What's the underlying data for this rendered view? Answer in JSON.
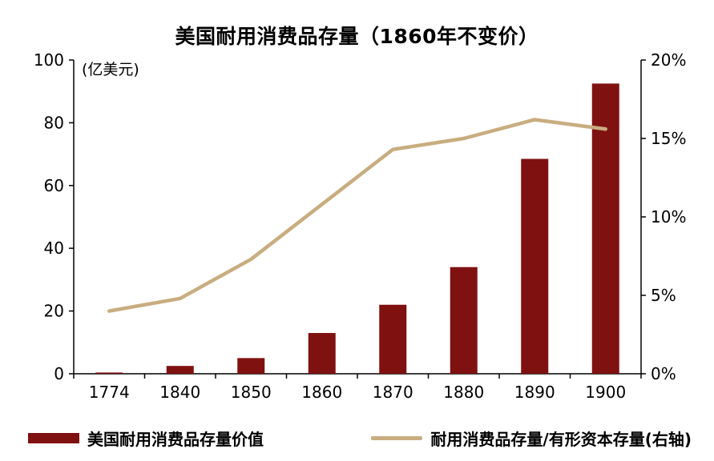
{
  "title": "美国耐用消费品存量（1860年不变价）",
  "chart_data": {
    "type": "combo",
    "categories": [
      "1774",
      "1840",
      "1850",
      "1860",
      "1870",
      "1880",
      "1890",
      "1900"
    ],
    "series": [
      {
        "name": "美国耐用消费品存量价值",
        "type": "bar",
        "axis": "left",
        "color": "#801111",
        "values": [
          0.4,
          2.5,
          5,
          13,
          22,
          34,
          68.5,
          92.5
        ]
      },
      {
        "name": "耐用消费品存量/有形资本存量(右轴)",
        "type": "line",
        "axis": "right",
        "color": "#C8AD80",
        "values_pct": [
          4.0,
          4.8,
          7.3,
          10.8,
          14.3,
          15.0,
          16.2,
          15.6
        ]
      }
    ],
    "left_axis": {
      "label": "(亿美元)",
      "min": 0,
      "max": 100,
      "ticks": [
        0,
        20,
        40,
        60,
        80,
        100
      ]
    },
    "right_axis": {
      "min": 0,
      "max": 20,
      "ticks": [
        "0%",
        "5%",
        "10%",
        "15%",
        "20%"
      ],
      "tick_values": [
        0,
        5,
        10,
        15,
        20
      ]
    },
    "grid": false,
    "legend_position": "bottom"
  },
  "legend": {
    "bar_label": "美国耐用消费品存量价值",
    "line_label": "耐用消费品存量/有形资本存量(右轴)"
  }
}
